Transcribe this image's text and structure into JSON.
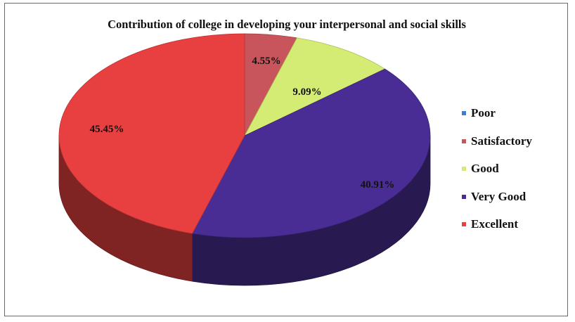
{
  "chart_data": {
    "type": "pie",
    "title": "Contribution of college in developing your interpersonal and social skills",
    "categories": [
      "Poor",
      "Satisfactory",
      "Good",
      "Very Good",
      "Excellent"
    ],
    "values": [
      0,
      4.55,
      9.09,
      40.91,
      45.45
    ],
    "data_labels": [
      "",
      "4.55%",
      "9.09%",
      "40.91%",
      "45.45%"
    ],
    "colors": [
      "#3b7dd8",
      "#c8555b",
      "#d4ec73",
      "#4a2d94",
      "#e84040"
    ],
    "legend_position": "right",
    "three_d": true
  }
}
